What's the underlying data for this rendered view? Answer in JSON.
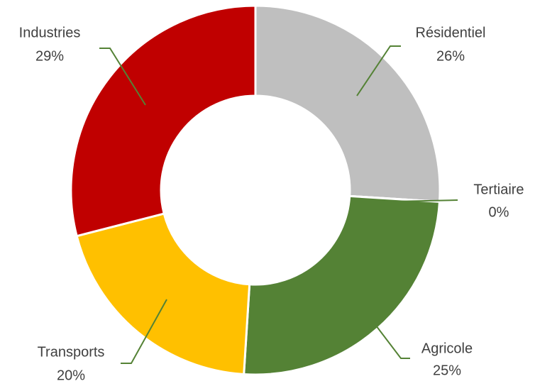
{
  "chart_data": {
    "type": "donut",
    "categories": [
      "Résidentiel",
      "Tertiaire",
      "Agricole",
      "Transports",
      "Industries"
    ],
    "values": [
      26,
      0,
      25,
      20,
      29
    ],
    "value_labels": [
      "26%",
      "0%",
      "25%",
      "20%",
      "29%"
    ],
    "colors": [
      "#bfbfbf",
      "#a5a5a5",
      "#548235",
      "#ffc000",
      "#c00000"
    ]
  }
}
